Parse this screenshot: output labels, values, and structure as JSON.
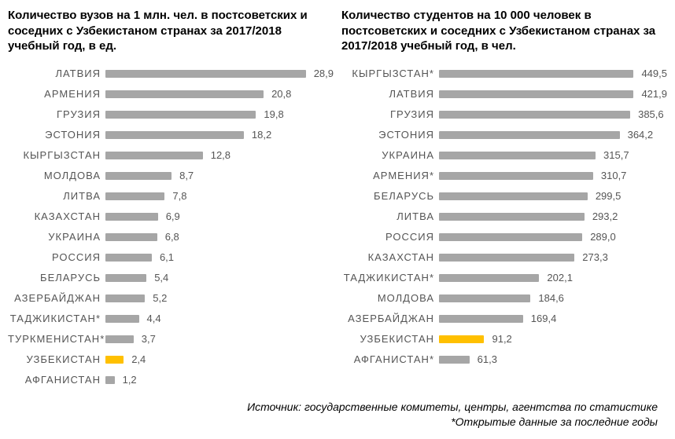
{
  "footer_line1": "Источник: государственные комитеты, центры, агентства по статистике",
  "footer_line2": "*Открытые данные за последние годы",
  "bar_default_color": "#a6a6a6",
  "bar_highlight_color": "#ffc000",
  "label_color": "#555555",
  "title_color": "#000000",
  "title_fontsize": 15,
  "label_fontsize": 13,
  "value_fontsize": 13,
  "left_chart": {
    "title": "Количество вузов на 1 млн. чел. в постсоветских и соседних с Узбекистаном странах за 2017/2018 учебный год, в ед.",
    "type": "bar_horizontal",
    "xlim_max": 30,
    "decimal_sep": ",",
    "decimals": 1,
    "items": [
      {
        "label": "ЛАТВИЯ",
        "value": 28.9,
        "highlight": false
      },
      {
        "label": "АРМЕНИЯ",
        "value": 20.8,
        "highlight": false
      },
      {
        "label": "ГРУЗИЯ",
        "value": 19.8,
        "highlight": false
      },
      {
        "label": "ЭСТОНИЯ",
        "value": 18.2,
        "highlight": false
      },
      {
        "label": "КЫРГЫЗСТАН",
        "value": 12.8,
        "highlight": false
      },
      {
        "label": "МОЛДОВА",
        "value": 8.7,
        "highlight": false
      },
      {
        "label": "ЛИТВА",
        "value": 7.8,
        "highlight": false
      },
      {
        "label": "КАЗАХСТАН",
        "value": 6.9,
        "highlight": false
      },
      {
        "label": "УКРАИНА",
        "value": 6.8,
        "highlight": false
      },
      {
        "label": "РОССИЯ",
        "value": 6.1,
        "highlight": false
      },
      {
        "label": "БЕЛАРУСЬ",
        "value": 5.4,
        "highlight": false
      },
      {
        "label": "АЗЕРБАЙДЖАН",
        "value": 5.2,
        "highlight": false
      },
      {
        "label": "ТАДЖИКИСТАН*",
        "value": 4.4,
        "highlight": false
      },
      {
        "label": "ТУРКМЕНИСТАН*",
        "value": 3.7,
        "highlight": false
      },
      {
        "label": "УЗБЕКИСТАН",
        "value": 2.4,
        "highlight": true
      },
      {
        "label": "АФГАНИСТАН",
        "value": 1.2,
        "highlight": false
      }
    ]
  },
  "right_chart": {
    "title": "Количество студентов на 10 000 человек в постсоветских и соседних с Узбекистаном странах за 2017/2018 учебный год, в чел.",
    "type": "bar_horizontal",
    "xlim_max": 460,
    "decimal_sep": ",",
    "decimals": 1,
    "items": [
      {
        "label": "КЫРГЫЗСТАН*",
        "value": 449.5,
        "highlight": false
      },
      {
        "label": "ЛАТВИЯ",
        "value": 421.9,
        "highlight": false
      },
      {
        "label": "ГРУЗИЯ",
        "value": 385.6,
        "highlight": false
      },
      {
        "label": "ЭСТОНИЯ",
        "value": 364.2,
        "highlight": false
      },
      {
        "label": "УКРАИНА",
        "value": 315.7,
        "highlight": false
      },
      {
        "label": "АРМЕНИЯ*",
        "value": 310.7,
        "highlight": false
      },
      {
        "label": "БЕЛАРУСЬ",
        "value": 299.5,
        "highlight": false
      },
      {
        "label": "ЛИТВА",
        "value": 293.2,
        "highlight": false
      },
      {
        "label": "РОССИЯ",
        "value": 289.0,
        "highlight": false
      },
      {
        "label": "КАЗАХСТАН",
        "value": 273.3,
        "highlight": false
      },
      {
        "label": "ТАДЖИКИСТАН*",
        "value": 202.1,
        "highlight": false
      },
      {
        "label": "МОЛДОВА",
        "value": 184.6,
        "highlight": false
      },
      {
        "label": "АЗЕРБАЙДЖАН",
        "value": 169.4,
        "highlight": false
      },
      {
        "label": "УЗБЕКИСТАН",
        "value": 91.2,
        "highlight": true
      },
      {
        "label": "АФГАНИСТАН*",
        "value": 61.3,
        "highlight": false
      }
    ]
  }
}
